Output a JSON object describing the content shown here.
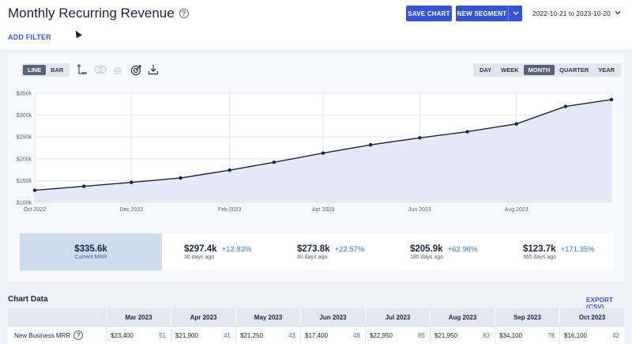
{
  "header": {
    "title": "Monthly Recurring Revenue",
    "help_icon": "question-circle-icon",
    "add_filter": "ADD FILTER",
    "save_chart": "SAVE CHART",
    "new_segment": "NEW SEGMENT",
    "date_range": "2022-10-21 to 2023-10-20"
  },
  "toolbar": {
    "chart_types": [
      "LINE",
      "BAR"
    ],
    "chart_type_selected": "LINE",
    "icons": [
      "axis-icon",
      "overlap-icon",
      "stack-icon",
      "target-icon",
      "download-icon"
    ],
    "periods": [
      "DAY",
      "WEEK",
      "MONTH",
      "QUARTER",
      "YEAR"
    ],
    "period_selected": "MONTH"
  },
  "chart_data": {
    "type": "area",
    "x": [
      "2022-10-21",
      "2022-11-21",
      "2022-12-21",
      "2023-01-21",
      "2023-02-21",
      "2023-03-21",
      "2023-04-21",
      "2023-05-21",
      "2023-06-21",
      "2023-07-21",
      "2023-08-21",
      "2023-09-21",
      "2023-10-20"
    ],
    "x_ticks": [
      "Oct 2022",
      "Dec 2022",
      "Feb 2023",
      "Apr 2023",
      "Jun 2023",
      "Aug 2023"
    ],
    "y_ticks": [
      "$100k",
      "$150k",
      "$200k",
      "$250k",
      "$300k",
      "$350k"
    ],
    "ylim": [
      100000,
      350000
    ],
    "series": [
      {
        "values": [
          128000,
          137000,
          146000,
          156000,
          174000,
          192000,
          213000,
          232000,
          248000,
          262000,
          280000,
          320000,
          335600
        ]
      }
    ],
    "colors": {
      "line": "#1b2340",
      "fill": "#e4e9f7",
      "grid": "#e3e6ee"
    }
  },
  "stats": [
    {
      "value": "$335.6k",
      "label": "Current MRR",
      "change": ""
    },
    {
      "value": "$297.4k",
      "label": "30 days ago",
      "change": "+12.83%"
    },
    {
      "value": "$273.8k",
      "label": "60 days ago",
      "change": "+22.57%"
    },
    {
      "value": "$205.9k",
      "label": "180 days ago",
      "change": "+62.96%"
    },
    {
      "value": "$123.7k",
      "label": "365 days ago",
      "change": "+171.35%"
    }
  ],
  "table": {
    "title": "Chart Data",
    "export": "EXPORT (CSV)",
    "columns": [
      "Mar 2023",
      "Apr 2023",
      "May 2023",
      "Jun 2023",
      "Jul 2023",
      "Aug 2023",
      "Sep 2023",
      "Oct 2023"
    ],
    "rows": [
      {
        "label": "New Business MRR",
        "cells": [
          {
            "amount": "$23,400",
            "count": "51"
          },
          {
            "amount": "$21,900",
            "count": "41"
          },
          {
            "amount": "$21,250",
            "count": "43"
          },
          {
            "amount": "$17,400",
            "count": "48"
          },
          {
            "amount": "$22,950",
            "count": "65"
          },
          {
            "amount": "$21,950",
            "count": "63"
          },
          {
            "amount": "$34,100",
            "count": "78"
          },
          {
            "amount": "$16,100",
            "count": "42"
          }
        ]
      }
    ]
  }
}
